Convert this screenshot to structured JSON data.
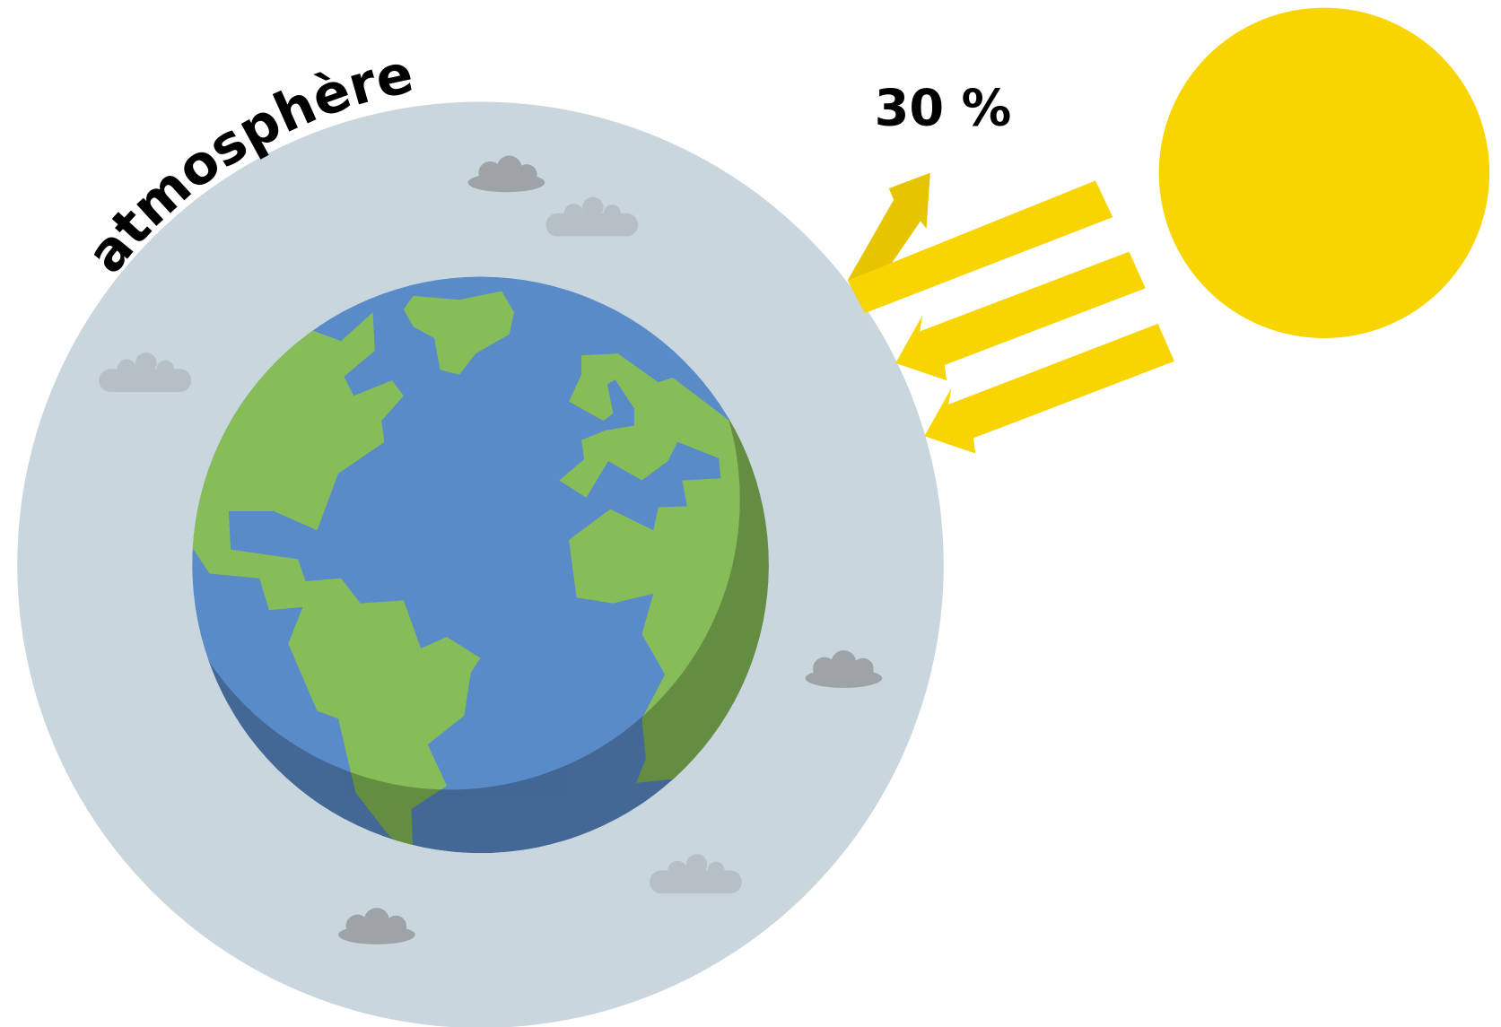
{
  "labels": {
    "atmosphere": "atmosphère",
    "reflected": "30 %"
  }
}
